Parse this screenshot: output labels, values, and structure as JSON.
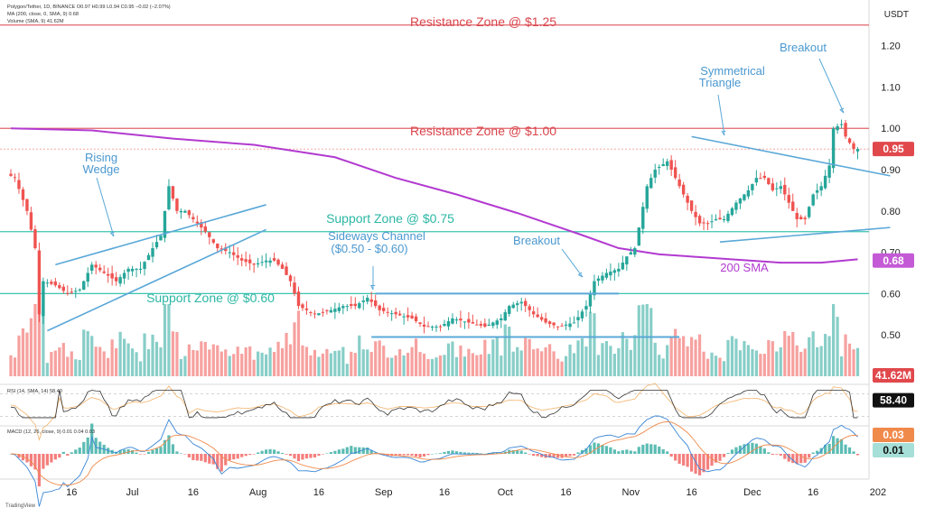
{
  "header": {
    "line1": "Polygon/Tether, 1D, BINANCE  O0.97  H0.99  L0.94  C0.95  −0.02 (−2.07%)",
    "line2": "MA (200, close, 0, SMA, 9)  0.68",
    "line3": "Volume (SMA, 9)  41.62M"
  },
  "currency": "USDT",
  "rsi_header": "RSI (14, SMA, 14)  58.40",
  "macd_header": "MACD (12, 26, close, 9)  0.01  0.04  0.03",
  "watermark": "TradingView",
  "colors": {
    "up": "#26a69a",
    "down": "#ef5350",
    "sma": "#b23ad0",
    "resistance": "#e0646a",
    "support": "#3cc3b0",
    "pattern": "#5aa8d8",
    "resistance_text": "#d8454c",
    "support_text": "#2bb7a4",
    "pattern_text": "#4a98d0",
    "sma_text": "#b23ad0"
  },
  "chart_data": {
    "type": "candlestick",
    "price_axis": {
      "min": 0.4,
      "max": 1.28,
      "ticks": [
        "1.20",
        "1.10",
        "1.00",
        "0.90",
        "0.80",
        "0.70",
        "0.60",
        "0.50"
      ]
    },
    "price_tick_values": [
      1.2,
      1.1,
      1.0,
      0.9,
      0.8,
      0.7,
      0.6,
      0.5
    ],
    "time_ticks": [
      "16",
      "Jul",
      "16",
      "Aug",
      "16",
      "Sep",
      "16",
      "Oct",
      "16",
      "Nov",
      "16",
      "Dec",
      "16",
      "202"
    ],
    "time_tick_days": [
      15,
      30,
      45,
      61,
      76,
      92,
      107,
      122,
      137,
      153,
      168,
      183,
      198,
      214
    ],
    "last_price": "0.95",
    "sma_value": "0.68",
    "volume_value": "41.62M",
    "rsi_value": "58.40",
    "macd_values": {
      "signal": "0.03",
      "macd": "0.01"
    },
    "annotations": {
      "resistance_125": "Resistance Zone @ $1.25",
      "resistance_100": "Resistance Zone @ $1.00",
      "support_075": "Support Zone @ $0.75",
      "support_060": "Support Zone @ $0.60",
      "rising_wedge_1": "Rising",
      "rising_wedge_2": "Wedge",
      "sideways_1": "Sideways Channel",
      "sideways_2": "($0.50 - $0.60)",
      "breakout_1": "Breakout",
      "breakout_2": "Breakout",
      "sym_1": "Symmetrical",
      "sym_2": "Triangle",
      "sma_label": "200 SMA"
    },
    "levels": {
      "resistance": [
        1.25,
        1.0
      ],
      "support": [
        0.75,
        0.6
      ]
    },
    "candle_anchors": [
      [
        0,
        0.89
      ],
      [
        2,
        0.88
      ],
      [
        5,
        0.8
      ],
      [
        7,
        0.71
      ],
      [
        8,
        0.55
      ],
      [
        9,
        0.63
      ],
      [
        12,
        0.62
      ],
      [
        15,
        0.6
      ],
      [
        18,
        0.61
      ],
      [
        21,
        0.67
      ],
      [
        24,
        0.65
      ],
      [
        27,
        0.63
      ],
      [
        30,
        0.66
      ],
      [
        33,
        0.66
      ],
      [
        36,
        0.71
      ],
      [
        38,
        0.74
      ],
      [
        40,
        0.86
      ],
      [
        42,
        0.8
      ],
      [
        44,
        0.8
      ],
      [
        46,
        0.78
      ],
      [
        49,
        0.75
      ],
      [
        52,
        0.71
      ],
      [
        55,
        0.7
      ],
      [
        58,
        0.68
      ],
      [
        61,
        0.67
      ],
      [
        64,
        0.68
      ],
      [
        66,
        0.68
      ],
      [
        68,
        0.66
      ],
      [
        70,
        0.63
      ],
      [
        72,
        0.57
      ],
      [
        76,
        0.55
      ],
      [
        80,
        0.56
      ],
      [
        83,
        0.57
      ],
      [
        86,
        0.57
      ],
      [
        89,
        0.59
      ],
      [
        92,
        0.56
      ],
      [
        96,
        0.55
      ],
      [
        100,
        0.54
      ],
      [
        103,
        0.52
      ],
      [
        107,
        0.52
      ],
      [
        110,
        0.54
      ],
      [
        114,
        0.53
      ],
      [
        118,
        0.52
      ],
      [
        122,
        0.54
      ],
      [
        124,
        0.57
      ],
      [
        127,
        0.58
      ],
      [
        130,
        0.55
      ],
      [
        133,
        0.53
      ],
      [
        136,
        0.52
      ],
      [
        140,
        0.53
      ],
      [
        143,
        0.57
      ],
      [
        145,
        0.63
      ],
      [
        148,
        0.65
      ],
      [
        151,
        0.66
      ],
      [
        153,
        0.69
      ],
      [
        155,
        0.71
      ],
      [
        156,
        0.76
      ],
      [
        158,
        0.86
      ],
      [
        160,
        0.9
      ],
      [
        163,
        0.92
      ],
      [
        165,
        0.88
      ],
      [
        167,
        0.84
      ],
      [
        169,
        0.8
      ],
      [
        171,
        0.77
      ],
      [
        173,
        0.77
      ],
      [
        175,
        0.78
      ],
      [
        177,
        0.78
      ],
      [
        180,
        0.82
      ],
      [
        183,
        0.85
      ],
      [
        185,
        0.88
      ],
      [
        187,
        0.88
      ],
      [
        189,
        0.85
      ],
      [
        191,
        0.86
      ],
      [
        193,
        0.82
      ],
      [
        195,
        0.78
      ],
      [
        197,
        0.78
      ],
      [
        199,
        0.84
      ],
      [
        201,
        0.86
      ],
      [
        203,
        0.91
      ],
      [
        204,
        1.0
      ],
      [
        206,
        1.01
      ],
      [
        207,
        0.98
      ],
      [
        209,
        0.95
      ]
    ],
    "sma_points": [
      [
        0,
        1.0
      ],
      [
        20,
        0.995
      ],
      [
        40,
        0.975
      ],
      [
        60,
        0.96
      ],
      [
        80,
        0.93
      ],
      [
        95,
        0.88
      ],
      [
        110,
        0.84
      ],
      [
        125,
        0.795
      ],
      [
        140,
        0.745
      ],
      [
        150,
        0.71
      ],
      [
        160,
        0.695
      ],
      [
        175,
        0.685
      ],
      [
        190,
        0.675
      ],
      [
        200,
        0.675
      ],
      [
        209,
        0.683
      ]
    ],
    "volume_range": [
      0,
      60
    ],
    "rsi_range": [
      20,
      80
    ],
    "macd_range": [
      -0.05,
      0.05
    ]
  }
}
